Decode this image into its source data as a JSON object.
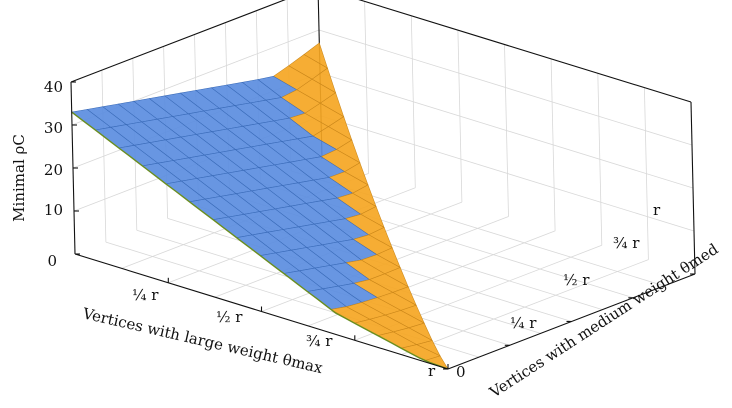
{
  "chart_data": {
    "type": "surface3d",
    "title": "",
    "zlabel": "Minimal ρC",
    "xlabel": "Vertices with large weight θmax",
    "ylabel": "Vertices with medium weight θmed",
    "zlim": [
      0,
      40
    ],
    "z_ticks": [
      "0",
      "10",
      "20",
      "30",
      "40"
    ],
    "x_ticks": [
      "¼ r",
      "½ r",
      "¾ r",
      "r"
    ],
    "y_ticks": [
      "0",
      "¼ r",
      "½ r",
      "¾ r",
      "r"
    ],
    "grid": true,
    "domain": "θmax + θmed ≤ r",
    "surfaces": [
      {
        "color": "#5b8de0",
        "description_values": "near θmax = 0, θmed = 0",
        "z_at_origin": 33
      },
      {
        "color": "#f5a623",
        "z_at_thmax0_thmed_r": 32,
        "z_at_thmax_r_thmed0": 0
      },
      {
        "color": "#9acd32",
        "z_at_thmax0_thmed0": 28,
        "z_at_thmax_r_thmed0": 0
      }
    ],
    "sample_points": [
      {
        "theta_max": 0,
        "theta_med": 0,
        "z": 33
      },
      {
        "theta_max": 0,
        "theta_med": 0.25,
        "z": 26
      },
      {
        "theta_max": 0,
        "theta_med": 0.5,
        "z": 26
      },
      {
        "theta_max": 0,
        "theta_med": 1.0,
        "z": 32
      },
      {
        "theta_max": 0.25,
        "theta_med": 0,
        "z": 12
      },
      {
        "theta_max": 0.5,
        "theta_med": 0,
        "z": 7
      },
      {
        "theta_max": 0.75,
        "theta_med": 0,
        "z": 4
      },
      {
        "theta_max": 1.0,
        "theta_med": 0,
        "z": 0
      }
    ]
  }
}
